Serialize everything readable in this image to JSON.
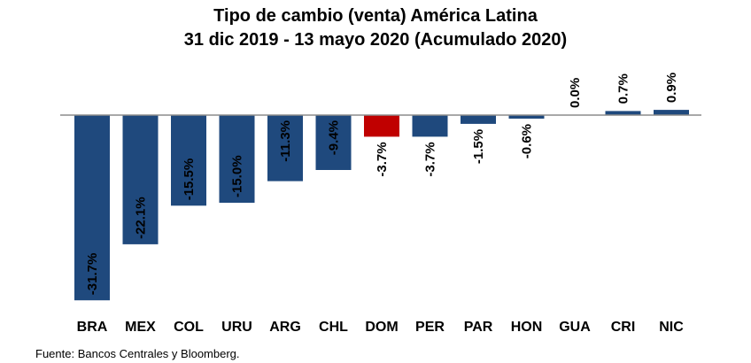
{
  "chart_data": {
    "type": "bar",
    "title": "Tipo de cambio (venta) América Latina",
    "subtitle": "31 dic 2019 - 13 mayo 2020 (Acumulado 2020)",
    "categories": [
      "BRA",
      "MEX",
      "COL",
      "URU",
      "ARG",
      "CHL",
      "DOM",
      "PER",
      "PAR",
      "HON",
      "GUA",
      "CRI",
      "NIC"
    ],
    "values": [
      -31.7,
      -22.1,
      -15.5,
      -15.0,
      -11.3,
      -9.4,
      -3.7,
      -3.7,
      -1.5,
      -0.6,
      0.0,
      0.7,
      0.9
    ],
    "data_labels": [
      "-31.7%",
      "-22.1%",
      "-15.5%",
      "-15.0%",
      "-11.3%",
      "-9.4%",
      "-3.7%",
      "-3.7%",
      "-1.5%",
      "-0.6%",
      "0.0%",
      "0.7%",
      "0.9%"
    ],
    "highlight_category": "DOM",
    "ylim": [
      -32,
      1
    ],
    "grid": false,
    "legend": false,
    "source": "Fuente: Bancos Centrales y Bloomberg."
  },
  "colors": {
    "bar": "#1F497D",
    "highlight": "#C00000",
    "axis": "#8C8C8C"
  }
}
